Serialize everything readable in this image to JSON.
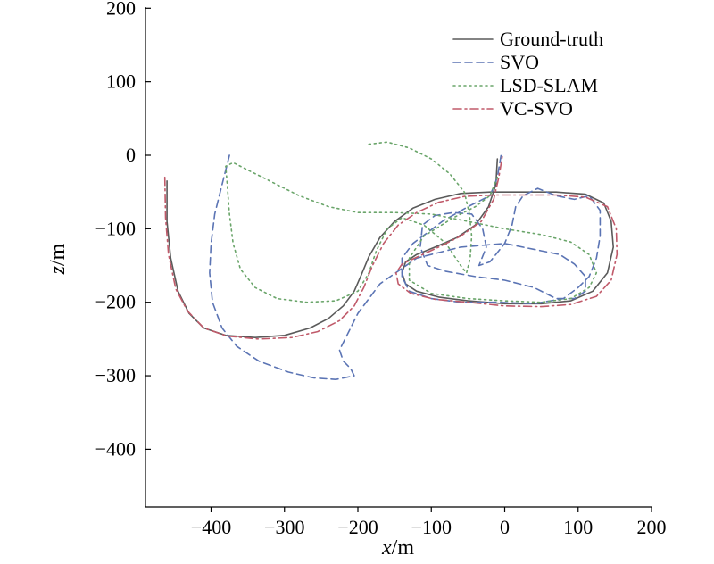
{
  "chart_data": {
    "type": "line",
    "title": "",
    "xlabel": {
      "var": "x",
      "unit": "/m"
    },
    "ylabel": {
      "var": "z",
      "unit": "/m"
    },
    "xlim": [
      -490,
      200
    ],
    "ylim": [
      -480,
      200
    ],
    "xticks": [
      -400,
      -300,
      -200,
      -100,
      0,
      100,
      200
    ],
    "yticks": [
      200,
      100,
      0,
      -100,
      -200,
      -300,
      -400
    ],
    "xtick_labels": [
      "−400",
      "−300",
      "−200",
      "−100",
      "0",
      "100",
      "200"
    ],
    "ytick_labels": [
      "200",
      "100",
      "0",
      "−100",
      "−200",
      "−300",
      "−400"
    ],
    "grid": false,
    "legend_position": "top-right",
    "series": [
      {
        "name": "Ground-truth",
        "color": "#5a5a5a",
        "dash": "solid",
        "points": [
          [
            -460,
            -35
          ],
          [
            -460,
            -90
          ],
          [
            -455,
            -140
          ],
          [
            -445,
            -185
          ],
          [
            -430,
            -215
          ],
          [
            -410,
            -235
          ],
          [
            -380,
            -245
          ],
          [
            -340,
            -248
          ],
          [
            -300,
            -245
          ],
          [
            -265,
            -235
          ],
          [
            -240,
            -222
          ],
          [
            -220,
            -205
          ],
          [
            -205,
            -185
          ],
          [
            -195,
            -162
          ],
          [
            -185,
            -138
          ],
          [
            -170,
            -112
          ],
          [
            -150,
            -90
          ],
          [
            -125,
            -72
          ],
          [
            -95,
            -60
          ],
          [
            -60,
            -52
          ],
          [
            -20,
            -50
          ],
          [
            30,
            -50
          ],
          [
            70,
            -50
          ],
          [
            110,
            -53
          ],
          [
            135,
            -65
          ],
          [
            145,
            -90
          ],
          [
            148,
            -125
          ],
          [
            140,
            -160
          ],
          [
            120,
            -185
          ],
          [
            90,
            -198
          ],
          [
            50,
            -202
          ],
          [
            0,
            -202
          ],
          [
            -50,
            -198
          ],
          [
            -90,
            -193
          ],
          [
            -120,
            -185
          ],
          [
            -135,
            -175
          ],
          [
            -140,
            -160
          ],
          [
            -135,
            -145
          ],
          [
            -120,
            -135
          ],
          [
            -95,
            -125
          ],
          [
            -65,
            -112
          ],
          [
            -40,
            -95
          ],
          [
            -22,
            -70
          ],
          [
            -12,
            -40
          ],
          [
            -10,
            -5
          ]
        ]
      },
      {
        "name": "SVO",
        "color": "#5b74b4",
        "dash": "8,5",
        "points": [
          [
            -375,
            0
          ],
          [
            -385,
            -40
          ],
          [
            -395,
            -80
          ],
          [
            -400,
            -120
          ],
          [
            -402,
            -160
          ],
          [
            -398,
            -200
          ],
          [
            -385,
            -235
          ],
          [
            -365,
            -260
          ],
          [
            -335,
            -280
          ],
          [
            -295,
            -295
          ],
          [
            -260,
            -303
          ],
          [
            -230,
            -305
          ],
          [
            -205,
            -300
          ],
          [
            -210,
            -290
          ],
          [
            -220,
            -280
          ],
          [
            -225,
            -265
          ],
          [
            -215,
            -245
          ],
          [
            -200,
            -215
          ],
          [
            -170,
            -175
          ],
          [
            -120,
            -140
          ],
          [
            -60,
            -125
          ],
          [
            0,
            -120
          ],
          [
            50,
            -130
          ],
          [
            75,
            -135
          ],
          [
            95,
            -148
          ],
          [
            110,
            -165
          ],
          [
            110,
            -185
          ],
          [
            95,
            -195
          ],
          [
            70,
            -195
          ],
          [
            40,
            -180
          ],
          [
            0,
            -170
          ],
          [
            -40,
            -165
          ],
          [
            -80,
            -158
          ],
          [
            -105,
            -150
          ],
          [
            -115,
            -125
          ],
          [
            -112,
            -95
          ],
          [
            -95,
            -82
          ],
          [
            -70,
            -78
          ],
          [
            -45,
            -80
          ],
          [
            -30,
            -100
          ],
          [
            -25,
            -125
          ],
          [
            -35,
            -150
          ],
          [
            -20,
            -145
          ],
          [
            0,
            -120
          ],
          [
            10,
            -95
          ],
          [
            15,
            -70
          ],
          [
            25,
            -55
          ],
          [
            45,
            -45
          ],
          [
            70,
            -55
          ],
          [
            95,
            -60
          ],
          [
            115,
            -55
          ],
          [
            130,
            -75
          ],
          [
            130,
            -110
          ],
          [
            125,
            -140
          ],
          [
            115,
            -165
          ],
          [
            100,
            -180
          ],
          [
            80,
            -195
          ],
          [
            40,
            -202
          ],
          [
            -10,
            -200
          ],
          [
            -60,
            -200
          ],
          [
            -100,
            -195
          ],
          [
            -130,
            -185
          ],
          [
            -140,
            -165
          ],
          [
            -140,
            -140
          ],
          [
            -125,
            -120
          ],
          [
            -85,
            -90
          ],
          [
            -50,
            -70
          ],
          [
            -20,
            -55
          ],
          [
            -10,
            -30
          ],
          [
            -5,
            0
          ]
        ]
      },
      {
        "name": "LSD-SLAM",
        "color": "#6aa56a",
        "dash": "2,4",
        "points": [
          [
            -185,
            15
          ],
          [
            -160,
            18
          ],
          [
            -130,
            10
          ],
          [
            -100,
            -5
          ],
          [
            -75,
            -25
          ],
          [
            -55,
            -50
          ],
          [
            -48,
            -80
          ],
          [
            -45,
            -110
          ],
          [
            -47,
            -140
          ],
          [
            -52,
            -160
          ],
          [
            -60,
            -150
          ],
          [
            -80,
            -120
          ],
          [
            -110,
            -95
          ],
          [
            -140,
            -85
          ],
          [
            -160,
            -100
          ],
          [
            -175,
            -130
          ],
          [
            -185,
            -160
          ],
          [
            -200,
            -185
          ],
          [
            -230,
            -198
          ],
          [
            -270,
            -200
          ],
          [
            -310,
            -195
          ],
          [
            -340,
            -180
          ],
          [
            -360,
            -155
          ],
          [
            -370,
            -120
          ],
          [
            -375,
            -80
          ],
          [
            -378,
            -40
          ],
          [
            -380,
            -15
          ],
          [
            -370,
            -10
          ],
          [
            -350,
            -20
          ],
          [
            -320,
            -35
          ],
          [
            -280,
            -55
          ],
          [
            -240,
            -70
          ],
          [
            -200,
            -78
          ],
          [
            -150,
            -78
          ],
          [
            -100,
            -80
          ],
          [
            -50,
            -90
          ],
          [
            0,
            -100
          ],
          [
            50,
            -108
          ],
          [
            90,
            -118
          ],
          [
            115,
            -135
          ],
          [
            125,
            -160
          ],
          [
            115,
            -180
          ],
          [
            90,
            -195
          ],
          [
            50,
            -200
          ],
          [
            0,
            -198
          ],
          [
            -50,
            -195
          ],
          [
            -100,
            -188
          ],
          [
            -130,
            -170
          ],
          [
            -130,
            -140
          ],
          [
            -110,
            -110
          ],
          [
            -70,
            -85
          ],
          [
            -40,
            -70
          ],
          [
            -20,
            -55
          ],
          [
            -10,
            -30
          ]
        ]
      },
      {
        "name": "VC-SVO",
        "color": "#c05a6a",
        "dash": "9,4,2,4",
        "points": [
          [
            -463,
            -30
          ],
          [
            -462,
            -85
          ],
          [
            -458,
            -135
          ],
          [
            -448,
            -182
          ],
          [
            -432,
            -212
          ],
          [
            -410,
            -235
          ],
          [
            -378,
            -246
          ],
          [
            -335,
            -250
          ],
          [
            -290,
            -248
          ],
          [
            -255,
            -240
          ],
          [
            -225,
            -225
          ],
          [
            -205,
            -205
          ],
          [
            -192,
            -180
          ],
          [
            -180,
            -150
          ],
          [
            -165,
            -120
          ],
          [
            -145,
            -95
          ],
          [
            -120,
            -78
          ],
          [
            -90,
            -64
          ],
          [
            -55,
            -56
          ],
          [
            -15,
            -54
          ],
          [
            30,
            -54
          ],
          [
            70,
            -54
          ],
          [
            110,
            -57
          ],
          [
            140,
            -70
          ],
          [
            152,
            -100
          ],
          [
            153,
            -135
          ],
          [
            145,
            -170
          ],
          [
            125,
            -192
          ],
          [
            90,
            -203
          ],
          [
            50,
            -206
          ],
          [
            0,
            -205
          ],
          [
            -50,
            -200
          ],
          [
            -95,
            -196
          ],
          [
            -128,
            -188
          ],
          [
            -145,
            -175
          ],
          [
            -148,
            -160
          ],
          [
            -140,
            -148
          ],
          [
            -118,
            -138
          ],
          [
            -90,
            -125
          ],
          [
            -60,
            -110
          ],
          [
            -32,
            -90
          ],
          [
            -15,
            -60
          ],
          [
            -8,
            -30
          ],
          [
            -3,
            0
          ]
        ]
      }
    ]
  }
}
